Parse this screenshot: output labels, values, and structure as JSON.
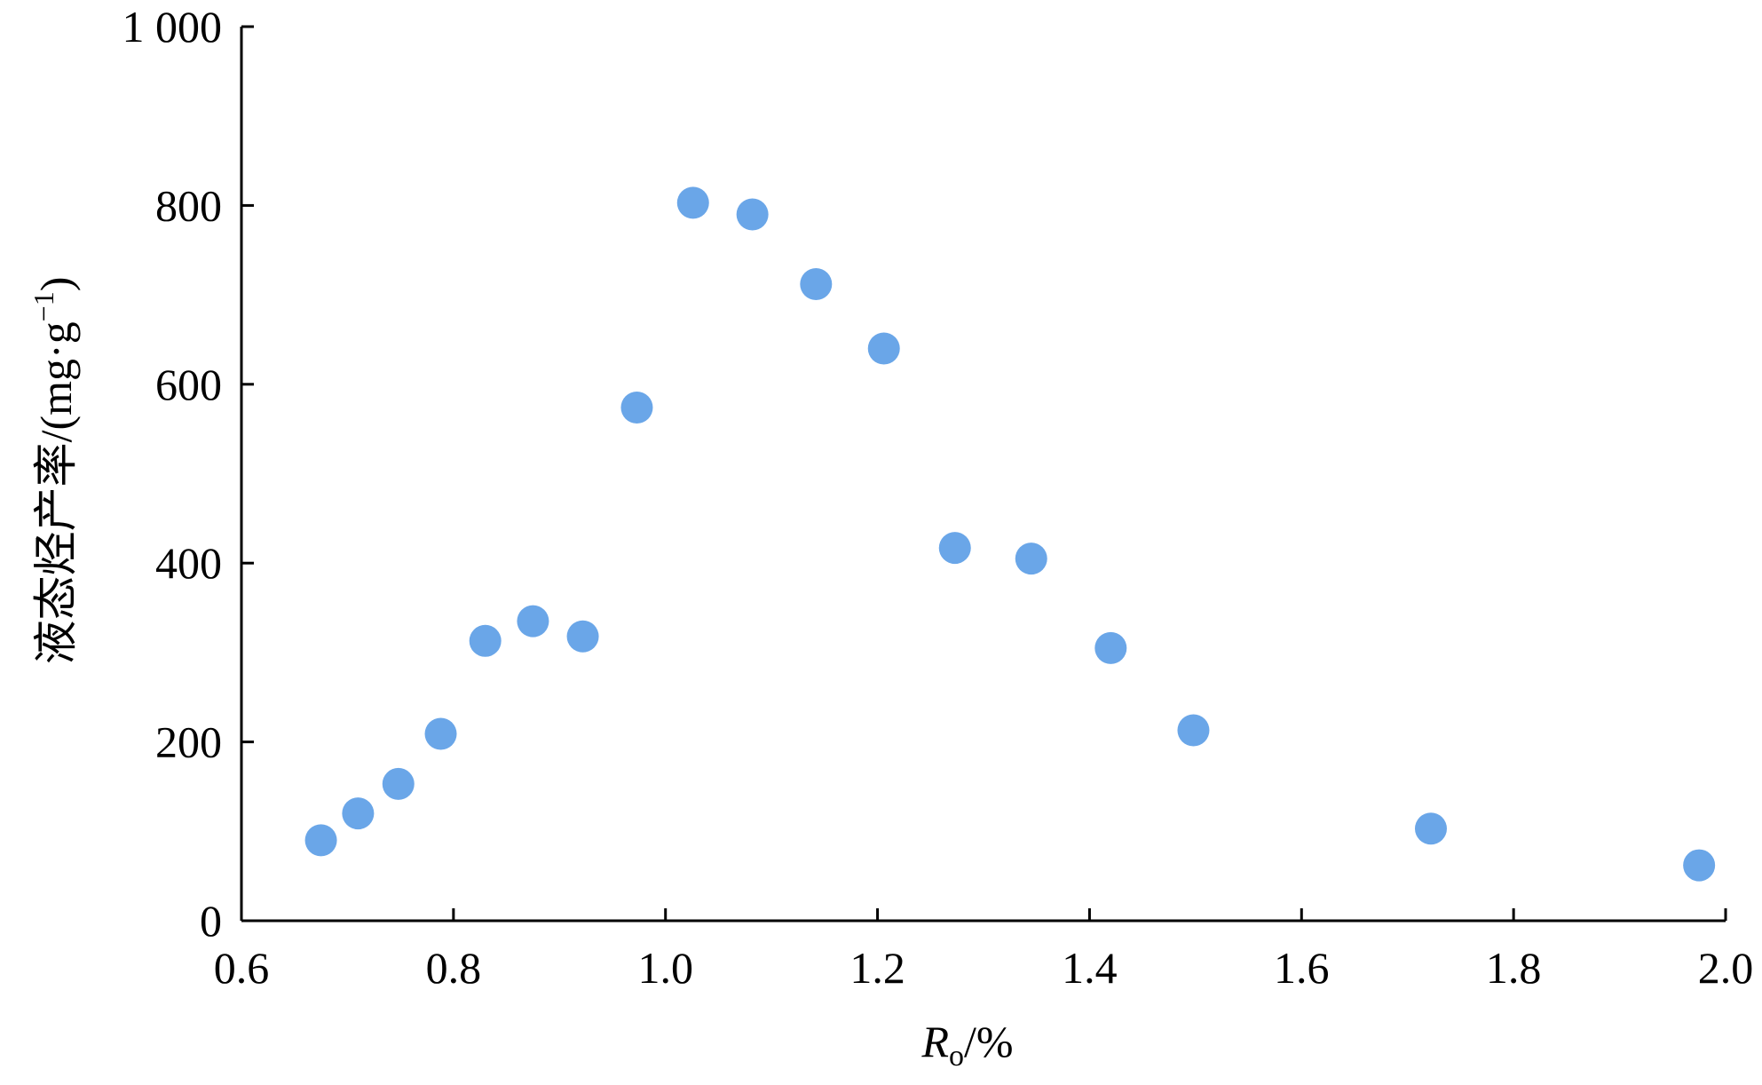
{
  "chart_data": {
    "type": "scatter",
    "xlabel": {
      "main": "R",
      "sub": "o",
      "unit": "/%"
    },
    "ylabel": {
      "text": "液态烃产率/(mg·g",
      "sup": "−1",
      "close": ")"
    },
    "xlim": [
      0.6,
      2.0
    ],
    "ylim": [
      0,
      1000
    ],
    "xticks": [
      "0.6",
      "0.8",
      "1.0",
      "1.2",
      "1.4",
      "1.6",
      "1.8",
      "2.0"
    ],
    "yticks": [
      "0",
      "200",
      "400",
      "600",
      "800",
      "1 000"
    ],
    "grid": false,
    "legend": "none",
    "point_color": "#6aa6e8",
    "points": [
      {
        "x": 0.675,
        "y": 90
      },
      {
        "x": 0.71,
        "y": 120
      },
      {
        "x": 0.748,
        "y": 153
      },
      {
        "x": 0.788,
        "y": 209
      },
      {
        "x": 0.83,
        "y": 313
      },
      {
        "x": 0.875,
        "y": 335
      },
      {
        "x": 0.922,
        "y": 318
      },
      {
        "x": 0.973,
        "y": 574
      },
      {
        "x": 1.026,
        "y": 803
      },
      {
        "x": 1.082,
        "y": 790
      },
      {
        "x": 1.142,
        "y": 712
      },
      {
        "x": 1.206,
        "y": 640
      },
      {
        "x": 1.273,
        "y": 417
      },
      {
        "x": 1.345,
        "y": 405
      },
      {
        "x": 1.42,
        "y": 305
      },
      {
        "x": 1.498,
        "y": 213
      },
      {
        "x": 1.722,
        "y": 103
      },
      {
        "x": 1.975,
        "y": 62
      }
    ]
  }
}
